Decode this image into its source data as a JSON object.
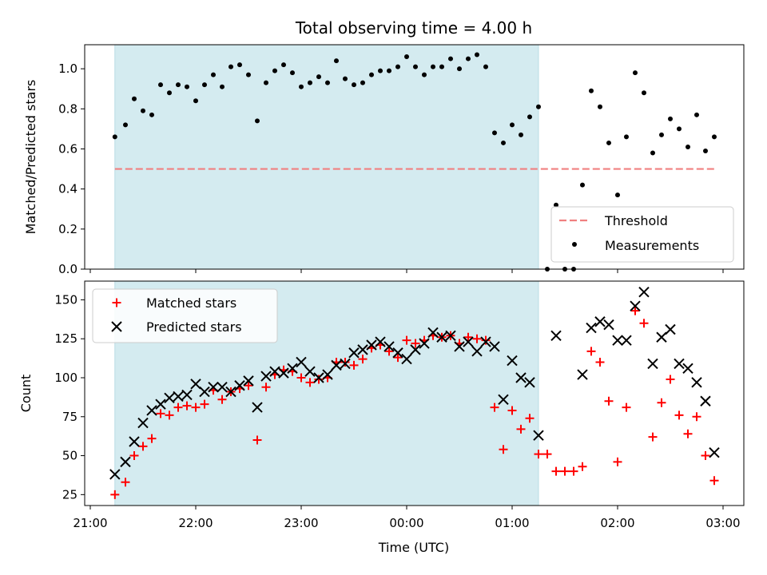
{
  "chart_data": {
    "type": "scatter",
    "title": "Total observing time = 4.00 h",
    "xlabel": "Time (UTC)",
    "x_ticks": [
      "21:00",
      "22:00",
      "23:00",
      "00:00",
      "01:00",
      "02:00",
      "03:00"
    ],
    "shaded_interval": [
      "21:14",
      "01:15"
    ],
    "shade_color": "#d4ebf0",
    "panels": [
      {
        "ylabel": "Matched/Predicted stars",
        "ylim": [
          0,
          1.12
        ],
        "y_ticks": [
          "0.0",
          "0.2",
          "0.4",
          "0.6",
          "0.8",
          "1.0"
        ],
        "legend_position": "lower-right",
        "legend": [
          "Threshold",
          "Measurements"
        ],
        "threshold": {
          "name": "Threshold",
          "value": 0.5,
          "x_range": [
            "21:14",
            "02:55"
          ],
          "color": "#f08080"
        },
        "series": [
          {
            "name": "Measurements",
            "marker": "dot",
            "color": "#000000",
            "x": [
              "21:14",
              "21:20",
              "21:25",
              "21:30",
              "21:35",
              "21:40",
              "21:45",
              "21:50",
              "21:55",
              "22:00",
              "22:05",
              "22:10",
              "22:15",
              "22:20",
              "22:25",
              "22:30",
              "22:35",
              "22:40",
              "22:45",
              "22:50",
              "22:55",
              "23:00",
              "23:05",
              "23:10",
              "23:15",
              "23:20",
              "23:25",
              "23:30",
              "23:35",
              "23:40",
              "23:45",
              "23:50",
              "23:55",
              "00:00",
              "00:05",
              "00:10",
              "00:15",
              "00:20",
              "00:25",
              "00:30",
              "00:35",
              "00:40",
              "00:45",
              "00:50",
              "00:55",
              "01:00",
              "01:05",
              "01:10",
              "01:15",
              "01:20",
              "01:25",
              "01:30",
              "01:35",
              "01:40",
              "01:45",
              "01:50",
              "01:55",
              "02:00",
              "02:05",
              "02:10",
              "02:15",
              "02:20",
              "02:25",
              "02:30",
              "02:35",
              "02:40",
              "02:45",
              "02:50",
              "02:55"
            ],
            "y": [
              0.66,
              0.72,
              0.85,
              0.79,
              0.77,
              0.92,
              0.88,
              0.92,
              0.91,
              0.84,
              0.92,
              0.97,
              0.91,
              1.01,
              1.02,
              0.97,
              0.74,
              0.93,
              0.99,
              1.02,
              0.98,
              0.91,
              0.93,
              0.96,
              0.93,
              1.04,
              0.95,
              0.92,
              0.93,
              0.97,
              0.99,
              0.99,
              1.01,
              1.06,
              1.01,
              0.97,
              1.01,
              1.01,
              1.05,
              1.0,
              1.05,
              1.07,
              1.01,
              0.68,
              0.63,
              0.72,
              0.67,
              0.76,
              0.81,
              0.0,
              0.32,
              0.0,
              0.0,
              0.42,
              0.89,
              0.81,
              0.63,
              0.37,
              0.66,
              0.98,
              0.88,
              0.58,
              0.67,
              0.75,
              0.7,
              0.61,
              0.77,
              0.59,
              0.66
            ]
          }
        ]
      },
      {
        "ylabel": "Count",
        "ylim": [
          18,
          162
        ],
        "y_ticks": [
          "25",
          "50",
          "75",
          "100",
          "125",
          "150"
        ],
        "legend_position": "upper-left",
        "legend": [
          "Matched stars",
          "Predicted stars"
        ],
        "series": [
          {
            "name": "Matched stars",
            "marker": "plus",
            "color": "#ff0000",
            "x": [
              "21:14",
              "21:20",
              "21:25",
              "21:30",
              "21:35",
              "21:40",
              "21:45",
              "21:50",
              "21:55",
              "22:00",
              "22:05",
              "22:10",
              "22:15",
              "22:20",
              "22:25",
              "22:30",
              "22:35",
              "22:40",
              "22:45",
              "22:50",
              "22:55",
              "23:00",
              "23:05",
              "23:10",
              "23:15",
              "23:20",
              "23:25",
              "23:30",
              "23:35",
              "23:40",
              "23:45",
              "23:50",
              "23:55",
              "00:00",
              "00:05",
              "00:10",
              "00:15",
              "00:20",
              "00:25",
              "00:30",
              "00:35",
              "00:40",
              "00:45",
              "00:50",
              "00:55",
              "01:00",
              "01:05",
              "01:10",
              "01:15",
              "01:20",
              "01:25",
              "01:30",
              "01:35",
              "01:40",
              "01:45",
              "01:50",
              "01:55",
              "02:00",
              "02:05",
              "02:10",
              "02:15",
              "02:20",
              "02:25",
              "02:30",
              "02:35",
              "02:40",
              "02:45",
              "02:50",
              "02:55"
            ],
            "y": [
              25,
              33,
              50,
              56,
              61,
              77,
              76,
              81,
              82,
              81,
              83,
              92,
              86,
              91,
              93,
              95,
              60,
              94,
              102,
              105,
              104,
              100,
              97,
              99,
              100,
              110,
              110,
              108,
              112,
              119,
              121,
              117,
              113,
              124,
              122,
              124,
              127,
              126,
              127,
              122,
              126,
              125,
              124,
              81,
              54,
              79,
              67,
              74,
              51,
              51,
              40,
              40,
              40,
              43,
              117,
              110,
              85,
              46,
              81,
              143,
              135,
              62,
              84,
              99,
              76,
              64,
              75,
              50,
              34
            ]
          },
          {
            "name": "Predicted stars",
            "marker": "x",
            "color": "#000000",
            "x": [
              "21:14",
              "21:20",
              "21:25",
              "21:30",
              "21:35",
              "21:40",
              "21:45",
              "21:50",
              "21:55",
              "22:00",
              "22:05",
              "22:10",
              "22:15",
              "22:20",
              "22:25",
              "22:30",
              "22:35",
              "22:40",
              "22:45",
              "22:50",
              "22:55",
              "23:00",
              "23:05",
              "23:10",
              "23:15",
              "23:20",
              "23:25",
              "23:30",
              "23:35",
              "23:40",
              "23:45",
              "23:50",
              "23:55",
              "00:00",
              "00:05",
              "00:10",
              "00:15",
              "00:20",
              "00:25",
              "00:30",
              "00:35",
              "00:40",
              "00:45",
              "00:50",
              "00:55",
              "01:00",
              "01:05",
              "01:10",
              "01:15",
              "01:25",
              "01:40",
              "01:45",
              "01:50",
              "01:55",
              "02:00",
              "02:05",
              "02:10",
              "02:15",
              "02:20",
              "02:25",
              "02:30",
              "02:35",
              "02:40",
              "02:45",
              "02:50",
              "02:55"
            ],
            "y": [
              38,
              46,
              59,
              71,
              79,
              83,
              87,
              88,
              89,
              96,
              91,
              94,
              94,
              91,
              95,
              98,
              81,
              101,
              104,
              103,
              106,
              110,
              104,
              100,
              102,
              108,
              109,
              116,
              118,
              121,
              123,
              120,
              116,
              112,
              118,
              122,
              129,
              126,
              127,
              120,
              123,
              117,
              123,
              120,
              86,
              111,
              100,
              97,
              63,
              127,
              102,
              132,
              136,
              134,
              124,
              124,
              146,
              155,
              109,
              126,
              131,
              109,
              106,
              97,
              85,
              52
            ]
          }
        ]
      }
    ]
  }
}
